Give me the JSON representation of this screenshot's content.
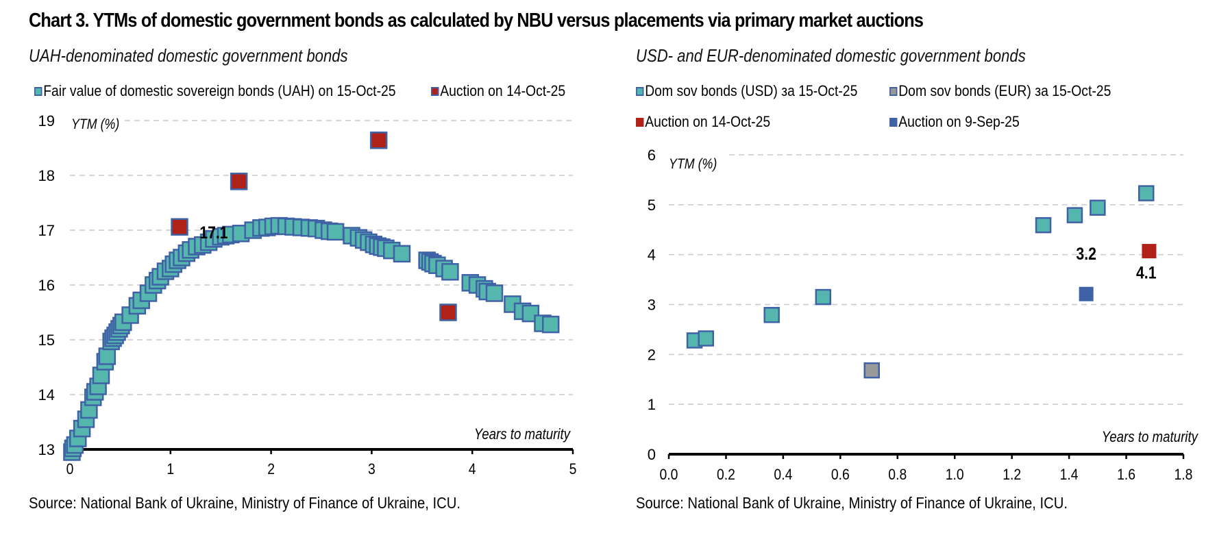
{
  "title": "Chart 3. YTMs of domestic government bonds as calculated by NBU versus placements via primary market auctions",
  "colors": {
    "teal": "#55b6ae",
    "marker_border": "#3f62a6",
    "red": "#b02118",
    "gray": "#999999",
    "blue": "#3f62a6",
    "grid": "#c8c8c8"
  },
  "chart_data": [
    {
      "type": "scatter",
      "subtitle": "UAH-denominated domestic government bonds",
      "ylabel": "YTM (%)",
      "xlabel": "Years to maturity",
      "xlim": [
        0,
        5
      ],
      "ylim": [
        13,
        19
      ],
      "xticks": [
        "0",
        "1",
        "2",
        "3",
        "4",
        "5"
      ],
      "yticks": [
        "13",
        "14",
        "15",
        "16",
        "17",
        "18",
        "19"
      ],
      "grid": "horizontal dashed",
      "legend": "top",
      "source": "Source: National Bank of Ukraine, Ministry of Finance of Ukraine, ICU.",
      "annotations": [
        {
          "text": "17.1",
          "x": 1.43,
          "y": 16.85
        }
      ],
      "series": [
        {
          "name": "Fair value of domestic sovereign bonds (UAH) on 15-Oct-25",
          "color": "teal",
          "points": [
            [
              0.02,
              12.95
            ],
            [
              0.03,
              13.02
            ],
            [
              0.05,
              13.08
            ],
            [
              0.08,
              13.2
            ],
            [
              0.12,
              13.38
            ],
            [
              0.16,
              13.55
            ],
            [
              0.19,
              13.72
            ],
            [
              0.23,
              13.95
            ],
            [
              0.25,
              14.05
            ],
            [
              0.28,
              14.15
            ],
            [
              0.31,
              14.35
            ],
            [
              0.35,
              14.6
            ],
            [
              0.37,
              14.7
            ],
            [
              0.41,
              14.97
            ],
            [
              0.43,
              15.03
            ],
            [
              0.45,
              15.08
            ],
            [
              0.47,
              15.14
            ],
            [
              0.49,
              15.2
            ],
            [
              0.51,
              15.26
            ],
            [
              0.53,
              15.32
            ],
            [
              0.6,
              15.45
            ],
            [
              0.67,
              15.62
            ],
            [
              0.71,
              15.72
            ],
            [
              0.78,
              15.85
            ],
            [
              0.83,
              16.0
            ],
            [
              0.87,
              16.08
            ],
            [
              0.9,
              16.15
            ],
            [
              0.95,
              16.25
            ],
            [
              1.0,
              16.3
            ],
            [
              1.03,
              16.38
            ],
            [
              1.07,
              16.45
            ],
            [
              1.11,
              16.5
            ],
            [
              1.16,
              16.58
            ],
            [
              1.2,
              16.64
            ],
            [
              1.26,
              16.7
            ],
            [
              1.32,
              16.73
            ],
            [
              1.38,
              16.78
            ],
            [
              1.43,
              16.84
            ],
            [
              1.5,
              16.88
            ],
            [
              1.55,
              16.9
            ],
            [
              1.6,
              16.92
            ],
            [
              1.7,
              16.94
            ],
            [
              1.82,
              17.0
            ],
            [
              1.9,
              17.04
            ],
            [
              1.96,
              17.05
            ],
            [
              2.02,
              17.07
            ],
            [
              2.08,
              17.08
            ],
            [
              2.15,
              17.07
            ],
            [
              2.22,
              17.06
            ],
            [
              2.3,
              17.05
            ],
            [
              2.38,
              17.04
            ],
            [
              2.45,
              17.03
            ],
            [
              2.52,
              17.0
            ],
            [
              2.58,
              16.98
            ],
            [
              2.64,
              16.97
            ],
            [
              2.8,
              16.9
            ],
            [
              2.87,
              16.86
            ],
            [
              2.92,
              16.82
            ],
            [
              2.97,
              16.78
            ],
            [
              3.02,
              16.74
            ],
            [
              3.06,
              16.71
            ],
            [
              3.1,
              16.69
            ],
            [
              3.14,
              16.67
            ],
            [
              3.2,
              16.63
            ],
            [
              3.3,
              16.57
            ],
            [
              3.55,
              16.45
            ],
            [
              3.58,
              16.42
            ],
            [
              3.61,
              16.39
            ],
            [
              3.65,
              16.36
            ],
            [
              3.72,
              16.3
            ],
            [
              3.78,
              16.24
            ],
            [
              3.98,
              16.04
            ],
            [
              4.05,
              16.0
            ],
            [
              4.12,
              15.93
            ],
            [
              4.15,
              15.88
            ],
            [
              4.22,
              15.85
            ],
            [
              4.4,
              15.65
            ],
            [
              4.5,
              15.52
            ],
            [
              4.58,
              15.48
            ],
            [
              4.7,
              15.3
            ],
            [
              4.78,
              15.28
            ]
          ]
        },
        {
          "name": "Auction on 14-Oct-25",
          "color": "red",
          "points": [
            [
              1.09,
              17.06
            ],
            [
              1.68,
              17.89
            ],
            [
              3.07,
              18.64
            ],
            [
              3.76,
              15.5
            ]
          ]
        }
      ]
    },
    {
      "type": "scatter",
      "subtitle": "USD- and EUR-denominated domestic government bonds",
      "ylabel": "YTM (%)",
      "xlabel": "Years to maturity",
      "xlim": [
        0,
        1.8
      ],
      "ylim": [
        0,
        6
      ],
      "xticks": [
        "0.0",
        "0.2",
        "0.4",
        "0.6",
        "0.8",
        "1.0",
        "1.2",
        "1.4",
        "1.6",
        "1.8"
      ],
      "yticks": [
        "0",
        "1",
        "2",
        "3",
        "4",
        "5",
        "6"
      ],
      "grid": "horizontal dashed",
      "legend": "top",
      "source": "Source: National Bank of Ukraine, Ministry of Finance of Ukraine, ICU.",
      "annotations": [
        {
          "text": "3.2",
          "x": 1.46,
          "y": 3.9
        },
        {
          "text": "4.1",
          "x": 1.67,
          "y": 3.52
        }
      ],
      "series": [
        {
          "name": "Dom sov bonds (USD) за 15-Oct-25",
          "color": "teal",
          "points": [
            [
              0.09,
              2.28
            ],
            [
              0.13,
              2.32
            ],
            [
              0.36,
              2.79
            ],
            [
              0.54,
              3.15
            ],
            [
              1.31,
              4.59
            ],
            [
              1.42,
              4.79
            ],
            [
              1.5,
              4.94
            ],
            [
              1.67,
              5.23
            ]
          ]
        },
        {
          "name": "Dom sov bonds (EUR) за 15-Oct-25",
          "color": "gray",
          "points": [
            [
              0.71,
              1.68
            ]
          ]
        },
        {
          "name": "Auction on 14-Oct-25",
          "color": "red",
          "points": [
            [
              1.68,
              4.07
            ]
          ]
        },
        {
          "name": "Auction on 9-Sep-25",
          "color": "blue",
          "points": [
            [
              1.46,
              3.21
            ]
          ]
        }
      ]
    }
  ]
}
